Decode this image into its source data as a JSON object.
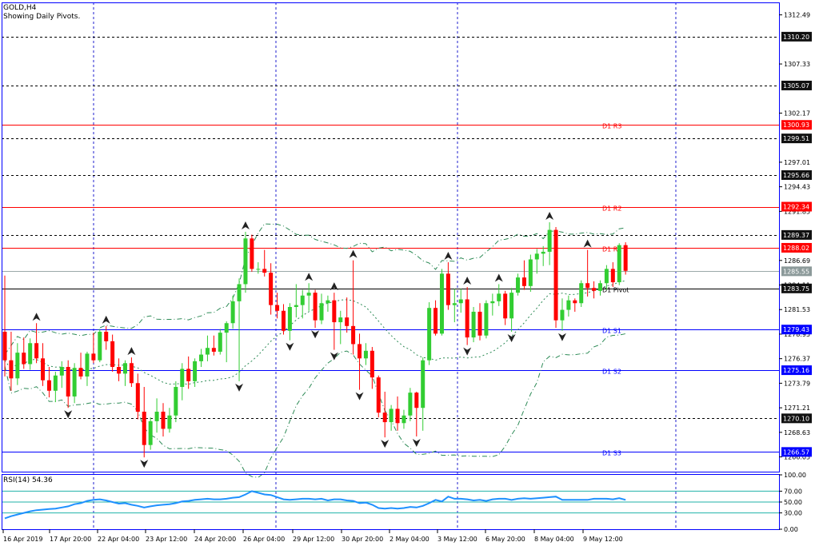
{
  "header": {
    "symbol": "GOLD,H4",
    "subtitle": "Showing Daily Pivots."
  },
  "colors": {
    "bull": "#32CD32",
    "bear": "#FF0000",
    "frame": "#0000FF",
    "pivot": "#000000",
    "resistance": "#FF0000",
    "support": "#0000FF",
    "band": "#2E8B57",
    "rsi": "#1E90FF",
    "rsi_level": "#20B2AA",
    "grid_v": "#1F1FCF",
    "grid_h": "#000000"
  },
  "price_axis": {
    "ticks": [
      "1312.49",
      "1307.33",
      "1302.17",
      "1297.01",
      "1294.43",
      "1291.85",
      "1286.69",
      "1284.11",
      "1281.53",
      "1278.95",
      "1276.37",
      "1273.79",
      "1271.21",
      "1268.63",
      "1266.05"
    ]
  },
  "price_tags": [
    {
      "label": "1310.20",
      "style": "dark"
    },
    {
      "label": "1305.07",
      "style": "dark"
    },
    {
      "label": "1300.93",
      "style": "red"
    },
    {
      "label": "1299.51",
      "style": "dark"
    },
    {
      "label": "1295.66",
      "style": "dark"
    },
    {
      "label": "1292.34",
      "style": "red"
    },
    {
      "label": "1289.37",
      "style": "dark"
    },
    {
      "label": "1288.02",
      "style": "red"
    },
    {
      "label": "1285.55",
      "style": "gray"
    },
    {
      "label": "1283.75",
      "style": "dark"
    },
    {
      "label": "1279.43",
      "style": "blue"
    },
    {
      "label": "1275.16",
      "style": "blue"
    },
    {
      "label": "1270.10",
      "style": "dark"
    },
    {
      "label": "1266.57",
      "style": "blue"
    }
  ],
  "pivots": [
    {
      "name": "D1  R3",
      "value": 1300.93,
      "kind": "resistance"
    },
    {
      "name": "D1  R2",
      "value": 1292.34,
      "kind": "resistance"
    },
    {
      "name": "D1  R1",
      "value": 1288.02,
      "kind": "resistance"
    },
    {
      "name": "D1  Pivot",
      "value": 1283.75,
      "kind": "pivot"
    },
    {
      "name": "D1  S1",
      "value": 1279.43,
      "kind": "support"
    },
    {
      "name": "D1  S2",
      "value": 1275.16,
      "kind": "support"
    },
    {
      "name": "D1  S3",
      "value": 1266.57,
      "kind": "support"
    }
  ],
  "dashed_levels": [
    1310.2,
    1305.07,
    1299.51,
    1295.66,
    1289.37,
    1270.1
  ],
  "gray_level": 1285.55,
  "time_axis": {
    "ticks": [
      "16 Apr 2019",
      "17 Apr 20:00",
      "22 Apr 04:00",
      "23 Apr 12:00",
      "24 Apr 20:00",
      "26 Apr 04:00",
      "29 Apr 12:00",
      "30 Apr 20:00",
      "2 May 04:00",
      "3 May 12:00",
      "6 May 20:00",
      "8 May 04:00",
      "9 May 12:00"
    ]
  },
  "rsi": {
    "label": "RSI(14) 54.36",
    "axis": [
      "100.00",
      "70.00",
      "50.00",
      "30.00",
      "0.00"
    ],
    "levels": [
      70,
      50,
      30
    ]
  },
  "chart_data": {
    "type": "candlestick",
    "title": "GOLD,H4",
    "subtitle": "Showing Daily Pivots.",
    "ylim": [
      1264.5,
      1313.8
    ],
    "candles": [
      [
        1279.2,
        1285.1,
        1274.5,
        1276.2
      ],
      [
        1276.2,
        1279.2,
        1273.0,
        1274.3
      ],
      [
        1274.3,
        1278.0,
        1273.6,
        1277.0
      ],
      [
        1277.0,
        1278.6,
        1275.3,
        1275.8
      ],
      [
        1275.8,
        1278.5,
        1275.2,
        1278.0
      ],
      [
        1278.0,
        1280.1,
        1275.9,
        1276.4
      ],
      [
        1276.4,
        1278.0,
        1273.5,
        1274.1
      ],
      [
        1274.1,
        1275.5,
        1272.3,
        1273.0
      ],
      [
        1273.0,
        1275.0,
        1271.8,
        1274.6
      ],
      [
        1274.6,
        1276.1,
        1273.3,
        1275.5
      ],
      [
        1275.5,
        1276.2,
        1271.2,
        1272.4
      ],
      [
        1272.4,
        1275.9,
        1271.7,
        1275.4
      ],
      [
        1275.4,
        1277.0,
        1274.2,
        1274.5
      ],
      [
        1274.5,
        1277.1,
        1273.5,
        1276.9
      ],
      [
        1276.9,
        1279.1,
        1275.9,
        1276.2
      ],
      [
        1276.2,
        1279.5,
        1276.0,
        1279.2
      ],
      [
        1279.2,
        1279.8,
        1277.3,
        1278.2
      ],
      [
        1278.2,
        1278.9,
        1275.0,
        1275.5
      ],
      [
        1275.5,
        1276.4,
        1274.0,
        1274.8
      ],
      [
        1274.8,
        1276.2,
        1273.5,
        1275.9
      ],
      [
        1275.9,
        1276.5,
        1273.4,
        1273.8
      ],
      [
        1273.8,
        1274.8,
        1270.0,
        1270.8
      ],
      [
        1270.8,
        1273.4,
        1266.0,
        1267.3
      ],
      [
        1267.3,
        1270.2,
        1266.8,
        1269.8
      ],
      [
        1269.8,
        1272.2,
        1268.6,
        1270.8
      ],
      [
        1270.8,
        1271.7,
        1268.2,
        1269.0
      ],
      [
        1269.0,
        1271.2,
        1268.6,
        1270.4
      ],
      [
        1270.4,
        1274.0,
        1269.7,
        1273.4
      ],
      [
        1273.4,
        1275.9,
        1272.0,
        1275.3
      ],
      [
        1275.3,
        1276.6,
        1273.2,
        1274.0
      ],
      [
        1274.0,
        1276.4,
        1273.4,
        1276.1
      ],
      [
        1276.1,
        1277.4,
        1275.5,
        1276.8
      ],
      [
        1276.8,
        1278.8,
        1276.1,
        1277.5
      ],
      [
        1277.5,
        1278.8,
        1276.7,
        1277.1
      ],
      [
        1277.1,
        1279.5,
        1276.8,
        1279.1
      ],
      [
        1279.1,
        1280.3,
        1276.0,
        1280.1
      ],
      [
        1280.1,
        1283.0,
        1279.5,
        1282.4
      ],
      [
        1282.4,
        1284.8,
        1274.0,
        1284.2
      ],
      [
        1284.2,
        1289.7,
        1283.3,
        1289.0
      ],
      [
        1289.0,
        1289.4,
        1285.5,
        1285.8
      ],
      [
        1285.8,
        1286.5,
        1285.3,
        1285.8
      ],
      [
        1285.8,
        1287.8,
        1285.0,
        1285.4
      ],
      [
        1285.4,
        1286.4,
        1281.0,
        1282.0
      ],
      [
        1282.0,
        1283.3,
        1280.6,
        1281.4
      ],
      [
        1281.4,
        1282.1,
        1278.9,
        1279.3
      ],
      [
        1279.3,
        1282.2,
        1278.3,
        1281.8
      ],
      [
        1281.8,
        1284.2,
        1280.7,
        1282.0
      ],
      [
        1282.0,
        1283.6,
        1280.6,
        1283.0
      ],
      [
        1283.0,
        1284.3,
        1281.4,
        1283.3
      ],
      [
        1283.3,
        1283.6,
        1279.6,
        1280.4
      ],
      [
        1280.4,
        1283.2,
        1280.0,
        1282.2
      ],
      [
        1282.2,
        1283.0,
        1281.3,
        1282.5
      ],
      [
        1282.5,
        1283.3,
        1277.3,
        1280.2
      ],
      [
        1280.2,
        1281.4,
        1277.9,
        1280.7
      ],
      [
        1280.7,
        1282.8,
        1279.1,
        1279.8
      ],
      [
        1279.8,
        1286.7,
        1276.8,
        1277.9
      ],
      [
        1277.9,
        1279.0,
        1273.1,
        1276.4
      ],
      [
        1276.4,
        1278.0,
        1275.7,
        1277.2
      ],
      [
        1277.2,
        1277.6,
        1273.2,
        1274.4
      ],
      [
        1274.4,
        1274.6,
        1270.2,
        1270.7
      ],
      [
        1270.7,
        1272.9,
        1268.1,
        1269.7
      ],
      [
        1269.7,
        1271.5,
        1268.8,
        1271.1
      ],
      [
        1271.1,
        1272.4,
        1268.8,
        1269.6
      ],
      [
        1269.6,
        1271.0,
        1269.0,
        1270.4
      ],
      [
        1270.4,
        1273.3,
        1269.8,
        1272.8
      ],
      [
        1272.8,
        1272.9,
        1268.2,
        1271.2
      ],
      [
        1271.2,
        1276.5,
        1268.8,
        1276.2
      ],
      [
        1276.2,
        1282.3,
        1275.7,
        1281.7
      ],
      [
        1281.7,
        1282.5,
        1278.8,
        1279.0
      ],
      [
        1279.0,
        1285.8,
        1278.8,
        1285.3
      ],
      [
        1285.3,
        1286.5,
        1281.5,
        1282.0
      ],
      [
        1282.0,
        1283.7,
        1280.2,
        1282.2
      ],
      [
        1282.2,
        1283.7,
        1281.2,
        1282.6
      ],
      [
        1282.6,
        1283.9,
        1277.8,
        1278.6
      ],
      [
        1278.6,
        1281.8,
        1278.1,
        1281.3
      ],
      [
        1281.3,
        1282.2,
        1278.3,
        1278.8
      ],
      [
        1278.8,
        1282.5,
        1278.5,
        1282.2
      ],
      [
        1282.2,
        1283.2,
        1280.9,
        1282.4
      ],
      [
        1282.4,
        1284.2,
        1281.9,
        1283.2
      ],
      [
        1283.2,
        1283.5,
        1279.9,
        1280.6
      ],
      [
        1280.6,
        1283.8,
        1279.2,
        1283.3
      ],
      [
        1283.3,
        1285.3,
        1283.0,
        1284.9
      ],
      [
        1284.9,
        1286.7,
        1283.6,
        1284.0
      ],
      [
        1284.0,
        1287.3,
        1283.4,
        1286.8
      ],
      [
        1286.8,
        1287.9,
        1285.3,
        1287.4
      ],
      [
        1287.4,
        1288.2,
        1286.1,
        1287.6
      ],
      [
        1287.6,
        1290.7,
        1286.2,
        1289.9
      ],
      [
        1289.9,
        1290.2,
        1279.6,
        1280.4
      ],
      [
        1280.4,
        1282.7,
        1279.3,
        1281.5
      ],
      [
        1281.5,
        1283.0,
        1280.8,
        1282.5
      ],
      [
        1282.5,
        1282.7,
        1281.3,
        1282.2
      ],
      [
        1282.2,
        1284.6,
        1281.8,
        1284.3
      ],
      [
        1284.3,
        1287.8,
        1282.9,
        1283.8
      ],
      [
        1283.8,
        1284.5,
        1282.7,
        1283.5
      ],
      [
        1283.5,
        1284.6,
        1283.0,
        1284.3
      ],
      [
        1284.3,
        1286.2,
        1283.6,
        1285.8
      ],
      [
        1285.8,
        1286.5,
        1283.9,
        1284.4
      ],
      [
        1284.4,
        1288.5,
        1284.1,
        1288.3
      ],
      [
        1288.3,
        1288.6,
        1285.2,
        1285.6
      ]
    ],
    "rsi_values": [
      20,
      24,
      27,
      30,
      33,
      35,
      36,
      37,
      38,
      40,
      42,
      46,
      48,
      52,
      54,
      55,
      53,
      50,
      47,
      48,
      45,
      43,
      40,
      42,
      44,
      45,
      46,
      48,
      51,
      52,
      54,
      55,
      56,
      55,
      55,
      56,
      58,
      59,
      64,
      70,
      67,
      64,
      63,
      59,
      55,
      54,
      55,
      56,
      56,
      55,
      56,
      53,
      55,
      55,
      53,
      52,
      48,
      49,
      45,
      39,
      38,
      39,
      38,
      39,
      41,
      40,
      43,
      48,
      54,
      51,
      60,
      56,
      56,
      55,
      53,
      54,
      52,
      55,
      56,
      56,
      54,
      56,
      57,
      56,
      57,
      58,
      59,
      60,
      54,
      54,
      54,
      54,
      54,
      56,
      56,
      56,
      55,
      57,
      54
    ]
  }
}
